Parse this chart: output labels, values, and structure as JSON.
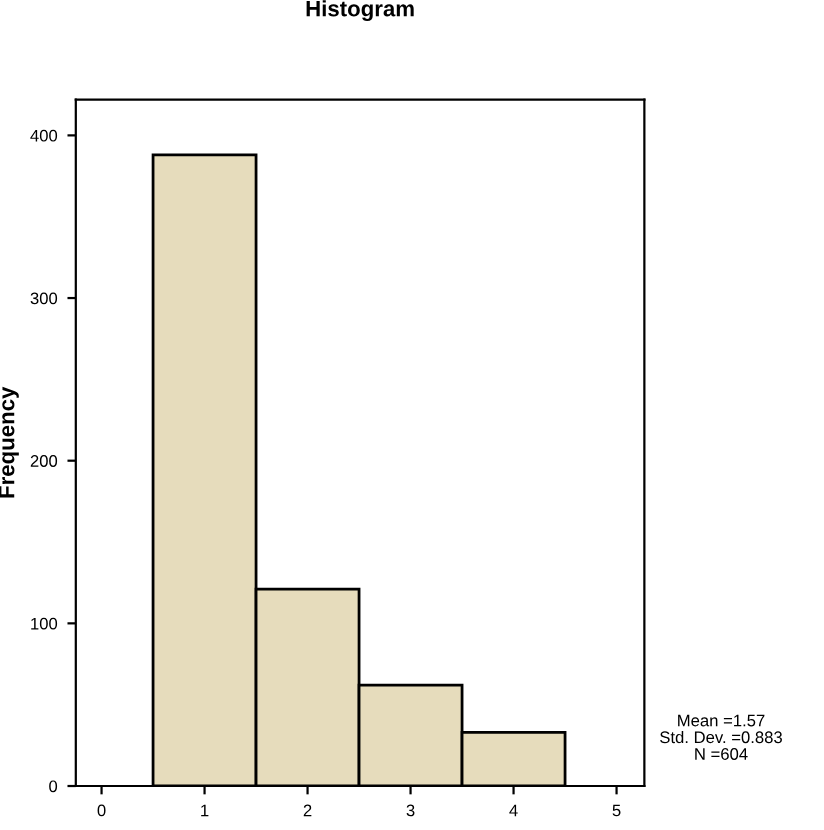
{
  "chart_data": {
    "type": "histogram",
    "title": "Histogram",
    "ylabel": "Frequency",
    "bins": [
      0.5,
      1.5,
      2.5,
      3.5,
      4.5
    ],
    "values": [
      388,
      121,
      62,
      33
    ],
    "color": "#e6dcbc",
    "xlim": [
      -0.25,
      5.27
    ],
    "xticks": [
      0,
      1,
      2,
      3,
      4,
      5
    ],
    "ylim": [
      0,
      422
    ],
    "yticks": [
      0,
      100,
      200,
      300,
      400
    ],
    "grid": false,
    "legend": false,
    "annotations": [
      "Mean =1.57\nStd. Dev. =0.883\nN =604"
    ]
  }
}
